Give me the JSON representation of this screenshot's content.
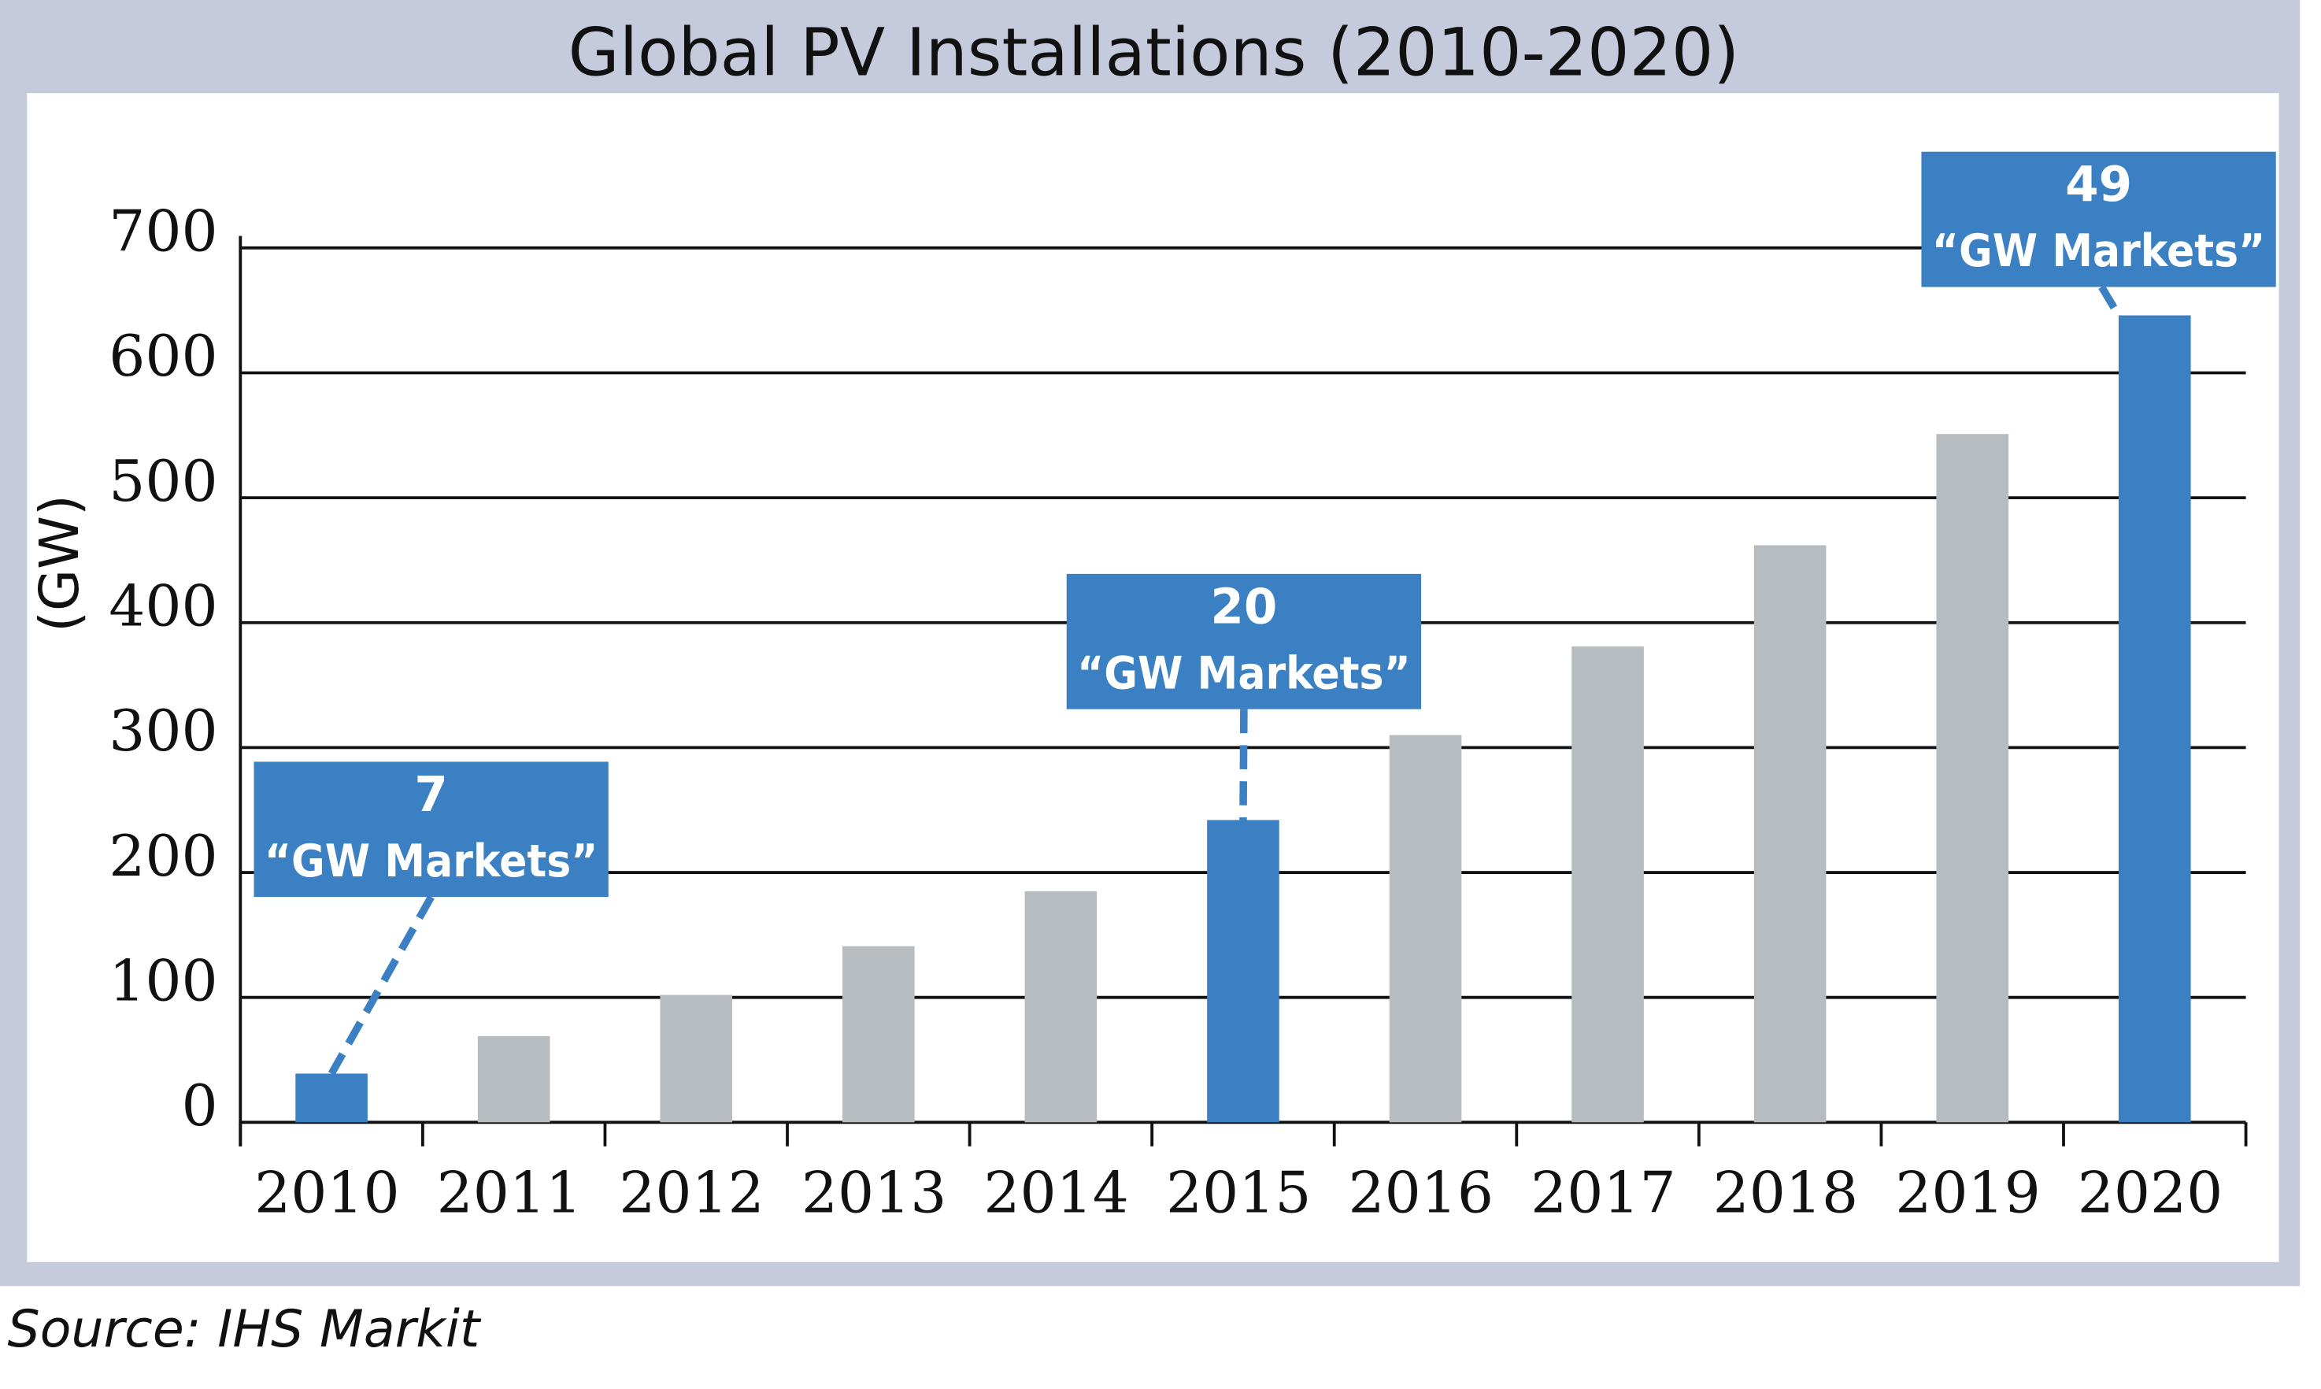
{
  "chart_data": {
    "type": "bar",
    "title": "Global PV Installations (2010-2020)",
    "y_label": "(GW)",
    "categories": [
      "2010",
      "2011",
      "2012",
      "2013",
      "2014",
      "2015",
      "2016",
      "2017",
      "2018",
      "2019",
      "2020"
    ],
    "values": [
      39,
      69,
      102,
      141,
      185,
      242,
      310,
      381,
      462,
      551,
      646
    ],
    "colors": [
      "#3a80c3",
      "#b7bcc0",
      "#b7bcc0",
      "#b7bcc0",
      "#b7bcc0",
      "#3a80c3",
      "#b7bcc0",
      "#b7bcc0",
      "#b7bcc0",
      "#b7bcc0",
      "#3a80c3"
    ],
    "ylim": [
      0,
      700
    ],
    "yticks": [
      0,
      100,
      200,
      300,
      400,
      500,
      600,
      700
    ],
    "grid": true,
    "annotations": [
      {
        "category": 0,
        "number": 7,
        "text": "“GW Markets”"
      },
      {
        "category": 5,
        "number": 20,
        "text": "“GW Markets”"
      },
      {
        "category": 10,
        "number": 49,
        "text": "“GW Markets”"
      }
    ],
    "source": "Source: IHS Markit"
  }
}
